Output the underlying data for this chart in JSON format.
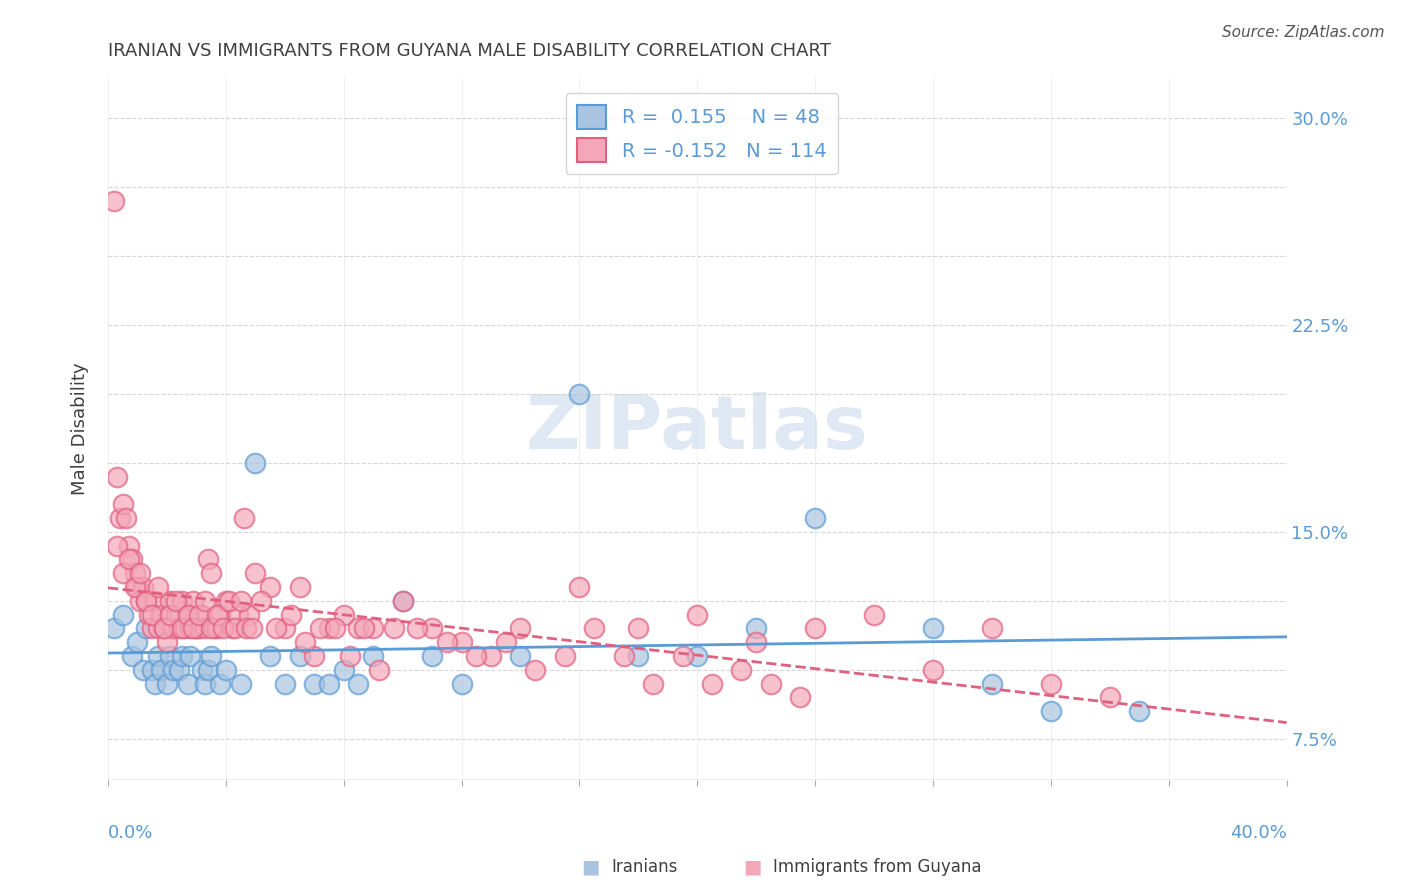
{
  "title": "IRANIAN VS IMMIGRANTS FROM GUYANA MALE DISABILITY CORRELATION CHART",
  "source": "Source: ZipAtlas.com",
  "ylabel": "Male Disability",
  "yticks": [
    0.075,
    0.1,
    0.125,
    0.15,
    0.175,
    0.2,
    0.225,
    0.25,
    0.275,
    0.3
  ],
  "ytick_labels": [
    "7.5%",
    "",
    "",
    "15.0%",
    "",
    "",
    "22.5%",
    "",
    "",
    "30.0%"
  ],
  "xlim": [
    0.0,
    0.4
  ],
  "ylim": [
    0.06,
    0.315
  ],
  "watermark": "ZIPatlas",
  "legend": {
    "iranian_r": "0.155",
    "iranian_n": "48",
    "guyana_r": "-0.152",
    "guyana_n": "114"
  },
  "iranian_color": "#a8c4e0",
  "iranian_line_color": "#5b9bd5",
  "guyana_color": "#f4a7b9",
  "guyana_line_color": "#e06080",
  "background_color": "#ffffff",
  "grid_color": "#cccccc",
  "title_color": "#404040",
  "axis_label_color": "#5b9bd5",
  "iranian_scatter": {
    "x": [
      0.002,
      0.005,
      0.008,
      0.01,
      0.012,
      0.013,
      0.015,
      0.016,
      0.017,
      0.018,
      0.019,
      0.02,
      0.021,
      0.022,
      0.024,
      0.025,
      0.027,
      0.028,
      0.03,
      0.032,
      0.033,
      0.034,
      0.035,
      0.038,
      0.04,
      0.045,
      0.05,
      0.055,
      0.06,
      0.065,
      0.07,
      0.075,
      0.08,
      0.085,
      0.09,
      0.1,
      0.11,
      0.12,
      0.14,
      0.16,
      0.18,
      0.2,
      0.22,
      0.24,
      0.28,
      0.3,
      0.32,
      0.35
    ],
    "y": [
      0.115,
      0.12,
      0.105,
      0.11,
      0.1,
      0.115,
      0.1,
      0.095,
      0.105,
      0.1,
      0.115,
      0.095,
      0.105,
      0.1,
      0.1,
      0.105,
      0.095,
      0.105,
      0.115,
      0.1,
      0.095,
      0.1,
      0.105,
      0.095,
      0.1,
      0.095,
      0.175,
      0.105,
      0.095,
      0.105,
      0.095,
      0.095,
      0.1,
      0.095,
      0.105,
      0.125,
      0.105,
      0.095,
      0.105,
      0.2,
      0.105,
      0.105,
      0.115,
      0.155,
      0.115,
      0.095,
      0.085,
      0.085
    ]
  },
  "guyana_scatter": {
    "x": [
      0.002,
      0.003,
      0.004,
      0.005,
      0.006,
      0.007,
      0.008,
      0.009,
      0.01,
      0.011,
      0.012,
      0.013,
      0.014,
      0.015,
      0.016,
      0.017,
      0.018,
      0.019,
      0.02,
      0.021,
      0.022,
      0.023,
      0.024,
      0.025,
      0.026,
      0.027,
      0.028,
      0.029,
      0.03,
      0.031,
      0.032,
      0.033,
      0.034,
      0.035,
      0.036,
      0.037,
      0.038,
      0.04,
      0.042,
      0.044,
      0.046,
      0.048,
      0.05,
      0.055,
      0.06,
      0.065,
      0.07,
      0.075,
      0.08,
      0.085,
      0.09,
      0.1,
      0.11,
      0.12,
      0.13,
      0.14,
      0.16,
      0.18,
      0.2,
      0.22,
      0.24,
      0.26,
      0.28,
      0.3,
      0.32,
      0.34,
      0.003,
      0.005,
      0.007,
      0.009,
      0.011,
      0.013,
      0.015,
      0.017,
      0.019,
      0.021,
      0.023,
      0.025,
      0.027,
      0.029,
      0.031,
      0.033,
      0.035,
      0.037,
      0.039,
      0.041,
      0.043,
      0.045,
      0.047,
      0.049,
      0.052,
      0.057,
      0.062,
      0.067,
      0.072,
      0.077,
      0.082,
      0.087,
      0.092,
      0.097,
      0.105,
      0.115,
      0.125,
      0.135,
      0.145,
      0.155,
      0.165,
      0.175,
      0.185,
      0.195,
      0.205,
      0.215,
      0.225,
      0.235
    ],
    "y": [
      0.27,
      0.17,
      0.155,
      0.16,
      0.155,
      0.145,
      0.14,
      0.135,
      0.13,
      0.125,
      0.13,
      0.125,
      0.12,
      0.115,
      0.125,
      0.115,
      0.12,
      0.115,
      0.11,
      0.125,
      0.115,
      0.12,
      0.115,
      0.125,
      0.115,
      0.12,
      0.115,
      0.125,
      0.115,
      0.115,
      0.12,
      0.115,
      0.14,
      0.135,
      0.115,
      0.115,
      0.12,
      0.125,
      0.115,
      0.12,
      0.155,
      0.12,
      0.135,
      0.13,
      0.115,
      0.13,
      0.105,
      0.115,
      0.12,
      0.115,
      0.115,
      0.125,
      0.115,
      0.11,
      0.105,
      0.115,
      0.13,
      0.115,
      0.12,
      0.11,
      0.115,
      0.12,
      0.1,
      0.115,
      0.095,
      0.09,
      0.145,
      0.135,
      0.14,
      0.13,
      0.135,
      0.125,
      0.12,
      0.13,
      0.115,
      0.12,
      0.125,
      0.115,
      0.12,
      0.115,
      0.12,
      0.125,
      0.115,
      0.12,
      0.115,
      0.125,
      0.115,
      0.125,
      0.115,
      0.115,
      0.125,
      0.115,
      0.12,
      0.11,
      0.115,
      0.115,
      0.105,
      0.115,
      0.1,
      0.115,
      0.115,
      0.11,
      0.105,
      0.11,
      0.1,
      0.105,
      0.115,
      0.105,
      0.095,
      0.105,
      0.095,
      0.1,
      0.095,
      0.09
    ]
  }
}
